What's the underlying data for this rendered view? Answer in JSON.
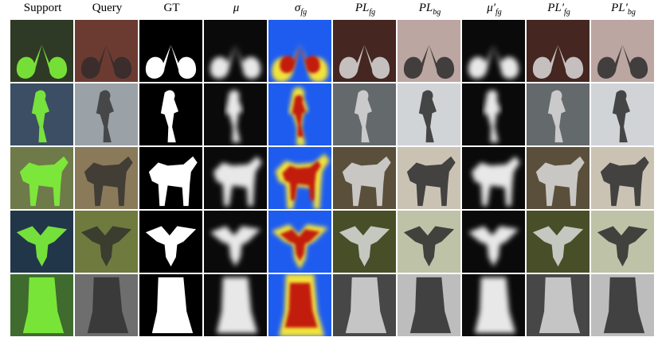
{
  "figure": {
    "columns": [
      {
        "id": "support",
        "label": "Support",
        "math": false
      },
      {
        "id": "query",
        "label": "Query",
        "math": false
      },
      {
        "id": "gt",
        "label": "GT",
        "math": false
      },
      {
        "id": "mu",
        "label": "μ",
        "math": true
      },
      {
        "id": "sigma_fg",
        "label": "σ_fg",
        "math": true
      },
      {
        "id": "pl_fg",
        "label": "PL_fg",
        "math": true
      },
      {
        "id": "pl_bg",
        "label": "PL_bg",
        "math": true
      },
      {
        "id": "mu_prime_fg",
        "label": "μ′_fg",
        "math": true
      },
      {
        "id": "pl_prime_fg",
        "label": "PL′_fg",
        "math": true
      },
      {
        "id": "pl_prime_bg",
        "label": "PL′_bg",
        "math": true
      }
    ],
    "rows": [
      {
        "id": "bicycle",
        "support_bg": "#2f3a26",
        "query_bg": "#6b3b32",
        "accent": "#7ef23a"
      },
      {
        "id": "person-bike",
        "support_bg": "#3b4e63",
        "query_bg": "#9aa1a7",
        "accent": "#7ef23a"
      },
      {
        "id": "horse",
        "support_bg": "#6f7a4a",
        "query_bg": "#8a7a5a",
        "accent": "#7ef23a"
      },
      {
        "id": "bird",
        "support_bg": "#22364a",
        "query_bg": "#6f7a3e",
        "accent": "#7ef23a"
      },
      {
        "id": "car",
        "support_bg": "#3f6b2f",
        "query_bg": "#6e6e6e",
        "accent": "#7ef23a"
      }
    ],
    "colors": {
      "mask_fg": "#ffffff",
      "mask_bg": "#000000",
      "heat_low": "#1e5cf0",
      "heat_mid": "#f2e33a",
      "heat_high": "#c21b10"
    }
  }
}
